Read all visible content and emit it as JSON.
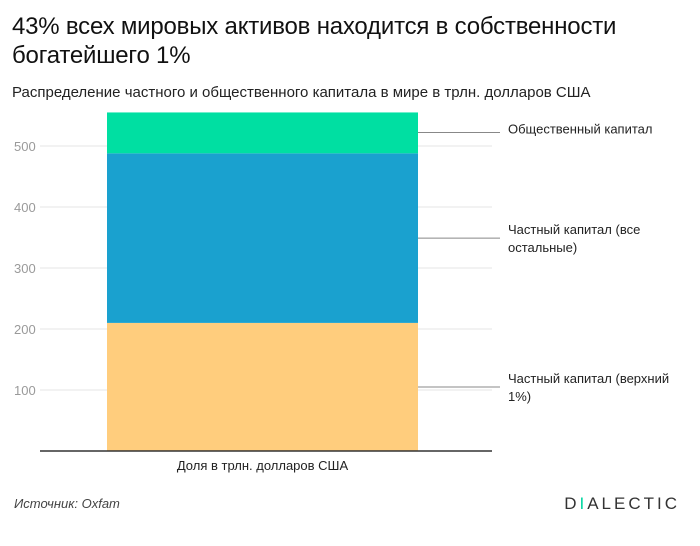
{
  "title": "43% всех мировых активов находится в собственности богатейшего 1%",
  "subtitle": "Распределение частного и общественного капитала в мире в трлн. долларов США",
  "source": "Источник: Oxfam",
  "brand": {
    "lead": "D",
    "accent": "I",
    "rest": "ALECTIC"
  },
  "colors": {
    "public": "#00dfa2",
    "private_rest": "#1aa1cf",
    "private_top": "#ffcd7d",
    "accent": "#00d6a1"
  },
  "chart_data": {
    "type": "bar",
    "stacked": true,
    "categories": [
      "Доля в трлн. долларов США"
    ],
    "xlabel": "Доля в трлн. долларов США",
    "ylabel": "",
    "ylim": [
      0,
      560
    ],
    "yticks": [
      100,
      200,
      300,
      400,
      500
    ],
    "grid": true,
    "legend": "right",
    "series": [
      {
        "name": "Частный капитал (верхний 1%)",
        "values": [
          210
        ],
        "color": "#ffcd7d",
        "label_lines": [
          "Частный капитал (верхний",
          "1%)"
        ]
      },
      {
        "name": "Частный капитал (все остальные)",
        "values": [
          278
        ],
        "color": "#1aa1cf",
        "label_lines": [
          "Частный капитал (все",
          "остальные)"
        ]
      },
      {
        "name": "Общественный капитал",
        "values": [
          67
        ],
        "color": "#00dfa2",
        "label_lines": [
          "Общественный капитал"
        ]
      }
    ]
  }
}
